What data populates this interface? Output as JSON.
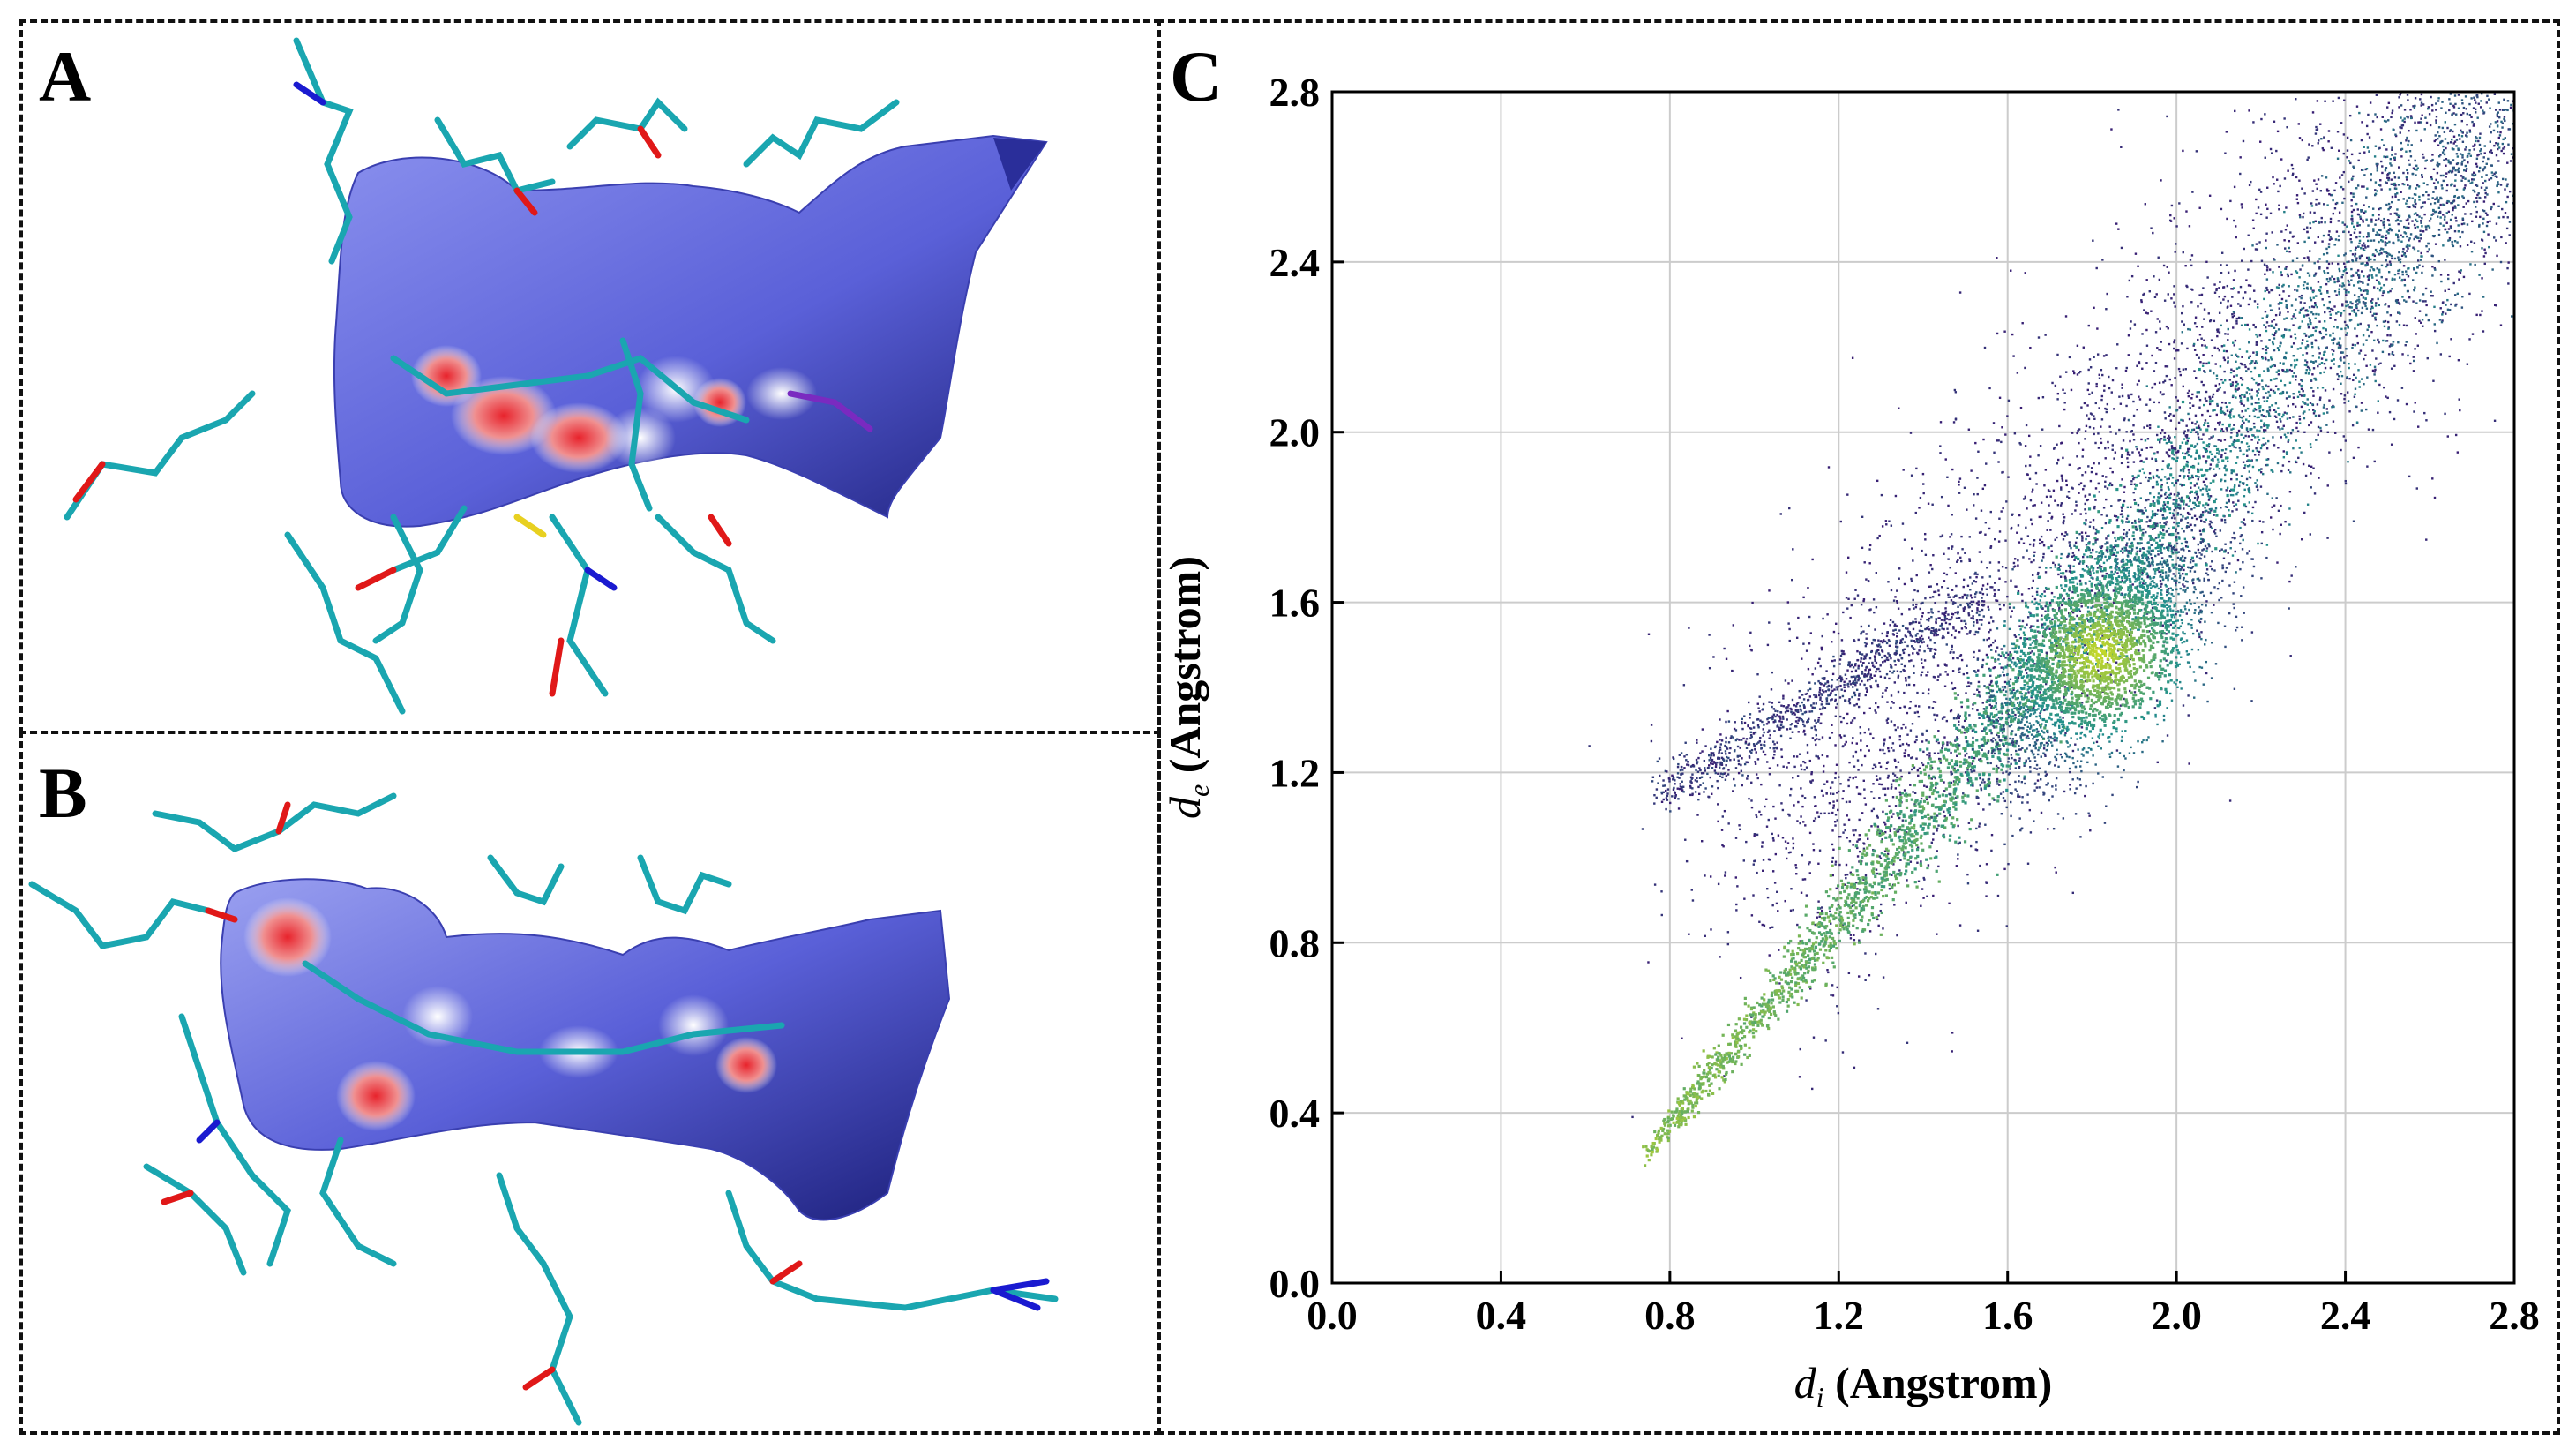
{
  "panels": {
    "a": {
      "letter": "A"
    },
    "b": {
      "letter": "B"
    },
    "c": {
      "letter": "C"
    }
  },
  "colors": {
    "surface_blue": "#5a60d8",
    "surface_dark": "#1c1f7a",
    "contact_red": "#e8232c",
    "stick_cyan": "#1aa6b0",
    "oxygen_red": "#e01818",
    "nitrogen_blue": "#1a1ad0",
    "sulfur_yellow": "#e8d020",
    "fp_low": "#3b0f70",
    "fp_mid": "#21908c",
    "fp_high": "#dde318"
  },
  "chart_data": {
    "type": "scatter",
    "title": "",
    "xlabel_var": "d",
    "xlabel_sub": "i",
    "xlabel_unit": " (Angstrom)",
    "ylabel_var": "d",
    "ylabel_sub": "e",
    "ylabel_unit": " (Angstrom)",
    "xlim": [
      0.0,
      2.8
    ],
    "ylim": [
      0.0,
      2.8
    ],
    "xticks": [
      "0.0",
      "0.4",
      "0.8",
      "1.2",
      "1.6",
      "2.0",
      "2.4",
      "2.8"
    ],
    "yticks": [
      "0.0",
      "0.4",
      "0.8",
      "1.2",
      "1.6",
      "2.0",
      "2.4",
      "2.8"
    ],
    "grid": true,
    "description_points": "2D fingerprint plot: dense diagonal band from (0.74, 0.30) to (2.8, 2.8), hotspot near (1.82, 1.48)",
    "density_hotspot": {
      "di": 1.82,
      "de": 1.48
    },
    "band_start": {
      "di": 0.74,
      "de": 0.3
    },
    "band_end": {
      "di": 2.8,
      "de": 2.8
    },
    "spike_tip": {
      "di": 0.78,
      "de": 1.15
    }
  }
}
